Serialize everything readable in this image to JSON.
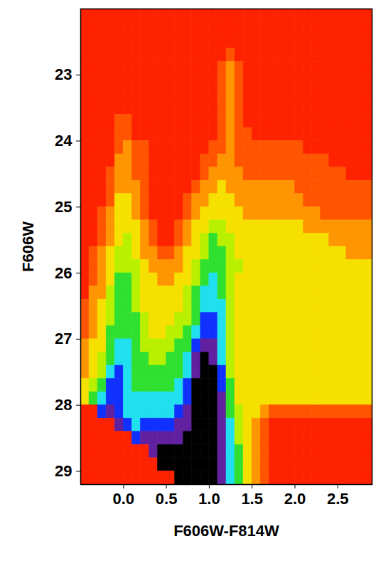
{
  "chart_data": {
    "type": "heatmap",
    "x_label": "F606W-F814W",
    "y_label": "F606W",
    "xlim": [
      -0.5,
      2.9
    ],
    "ylim": [
      29.2,
      22
    ],
    "xticks": [
      {
        "value": 0,
        "label": "0.0"
      },
      {
        "value": 0.5,
        "label": "0.5"
      },
      {
        "value": 1,
        "label": "1.0"
      },
      {
        "value": 1.5,
        "label": "1.5"
      },
      {
        "value": 2,
        "label": "2.0"
      },
      {
        "value": 2.5,
        "label": "2.5"
      }
    ],
    "yticks": [
      23,
      24,
      25,
      26,
      27,
      28,
      29
    ],
    "x_edges": [
      -0.5,
      -0.4,
      -0.3,
      -0.2,
      -0.1,
      0,
      0.1,
      0.2,
      0.3,
      0.4,
      0.5,
      0.6,
      0.7,
      0.8,
      0.9,
      1,
      1.1,
      1.2,
      1.3,
      1.4,
      1.5,
      1.6,
      1.7,
      1.8,
      1.9,
      2,
      2.1,
      2.2,
      2.3,
      2.4,
      2.5,
      2.6,
      2.7,
      2.8,
      2.9
    ],
    "y_edges": [
      22,
      22.2,
      22.4,
      22.6,
      22.8,
      23,
      23.2,
      23.4,
      23.6,
      23.8,
      24,
      24.2,
      24.4,
      24.6,
      24.8,
      25,
      25.2,
      25.4,
      25.6,
      25.8,
      26,
      26.2,
      26.4,
      26.6,
      26.8,
      27,
      27.2,
      27.4,
      27.6,
      27.8,
      28,
      28.2,
      28.4,
      28.6,
      28.8,
      29,
      29.2
    ],
    "zlim": [
      0,
      9
    ],
    "colors": [
      "#ff2200",
      "#ff5500",
      "#ff9500",
      "#f5e000",
      "#b8f000",
      "#30e030",
      "#20e0f0",
      "#1030ff",
      "#6020a0",
      "#000000"
    ],
    "z": [
      [
        0,
        0,
        0,
        0,
        0,
        0,
        0,
        0,
        0,
        0,
        0,
        0,
        0,
        0,
        0,
        0,
        0,
        0,
        0,
        0,
        0,
        0,
        0,
        0,
        0,
        0,
        0,
        0,
        0,
        0,
        0,
        0,
        0,
        0
      ],
      [
        0,
        0,
        0,
        0,
        0,
        0,
        0,
        0,
        0,
        0,
        0,
        0,
        0,
        0,
        0,
        0,
        0,
        0,
        0,
        0,
        0,
        0,
        0,
        0,
        0,
        0,
        0,
        0,
        0,
        0,
        0,
        0,
        0,
        0
      ],
      [
        0,
        0,
        0,
        0,
        0,
        0,
        0,
        0,
        0,
        0,
        0,
        0,
        0,
        0,
        0,
        0,
        0,
        0,
        0,
        0,
        0,
        0,
        0,
        0,
        0,
        0,
        0,
        0,
        0,
        0,
        0,
        0,
        0,
        0
      ],
      [
        0,
        0,
        0,
        0,
        0,
        0,
        0,
        0,
        0,
        0,
        0,
        0,
        0,
        0,
        0,
        0,
        0,
        1,
        0,
        0,
        0,
        0,
        0,
        0,
        0,
        0,
        0,
        0,
        0,
        0,
        0,
        0,
        0,
        0
      ],
      [
        0,
        0,
        0,
        0,
        0,
        0,
        0,
        0,
        0,
        0,
        0,
        0,
        0,
        0,
        0,
        0,
        1,
        2,
        1,
        0,
        0,
        0,
        0,
        0,
        0,
        0,
        0,
        0,
        0,
        0,
        0,
        0,
        0,
        0
      ],
      [
        0,
        0,
        0,
        0,
        0,
        0,
        0,
        0,
        0,
        0,
        0,
        0,
        0,
        0,
        0,
        0,
        1,
        2,
        1,
        0,
        0,
        0,
        0,
        0,
        0,
        0,
        0,
        0,
        0,
        0,
        0,
        0,
        0,
        0
      ],
      [
        0,
        0,
        0,
        0,
        0,
        0,
        0,
        0,
        0,
        0,
        0,
        0,
        0,
        0,
        0,
        0,
        1,
        2,
        1,
        0,
        0,
        0,
        0,
        0,
        0,
        0,
        0,
        0,
        0,
        0,
        0,
        0,
        0,
        0
      ],
      [
        0,
        0,
        0,
        0,
        0,
        0,
        0,
        0,
        0,
        0,
        0,
        0,
        0,
        0,
        0,
        0,
        1,
        2,
        1,
        0,
        0,
        0,
        0,
        0,
        0,
        0,
        0,
        0,
        0,
        0,
        0,
        0,
        0,
        0
      ],
      [
        0,
        0,
        0,
        0,
        1,
        1,
        0,
        0,
        0,
        0,
        0,
        0,
        0,
        0,
        0,
        0,
        1,
        2,
        1,
        0,
        0,
        0,
        0,
        0,
        0,
        0,
        0,
        0,
        0,
        0,
        0,
        0,
        0,
        0
      ],
      [
        0,
        0,
        0,
        0,
        1,
        1,
        0,
        0,
        0,
        0,
        0,
        0,
        0,
        0,
        0,
        0,
        1,
        2,
        1,
        1,
        0,
        0,
        0,
        0,
        0,
        0,
        0,
        0,
        0,
        0,
        0,
        0,
        0,
        0
      ],
      [
        0,
        0,
        0,
        0,
        1,
        2,
        1,
        1,
        0,
        0,
        0,
        0,
        0,
        0,
        0,
        1,
        1,
        2,
        1,
        1,
        1,
        1,
        1,
        1,
        1,
        1,
        0,
        0,
        0,
        0,
        0,
        0,
        0,
        0
      ],
      [
        0,
        0,
        0,
        0,
        2,
        2,
        1,
        1,
        0,
        0,
        0,
        0,
        0,
        0,
        1,
        1,
        2,
        2,
        1,
        1,
        1,
        1,
        1,
        1,
        1,
        1,
        1,
        1,
        1,
        0,
        0,
        0,
        0,
        0
      ],
      [
        0,
        0,
        0,
        1,
        2,
        2,
        1,
        1,
        0,
        0,
        0,
        0,
        0,
        0,
        1,
        2,
        2,
        2,
        2,
        1,
        1,
        1,
        1,
        1,
        1,
        1,
        1,
        1,
        1,
        1,
        1,
        0,
        0,
        0
      ],
      [
        0,
        0,
        0,
        1,
        2,
        2,
        2,
        1,
        0,
        0,
        0,
        0,
        0,
        1,
        2,
        2,
        3,
        2,
        2,
        2,
        2,
        2,
        2,
        2,
        2,
        1,
        1,
        1,
        1,
        1,
        1,
        1,
        1,
        1
      ],
      [
        0,
        0,
        0,
        1,
        3,
        3,
        2,
        1,
        0,
        0,
        0,
        0,
        1,
        2,
        2,
        3,
        3,
        3,
        2,
        2,
        2,
        2,
        2,
        2,
        2,
        2,
        1,
        1,
        1,
        1,
        1,
        1,
        1,
        1
      ],
      [
        0,
        0,
        1,
        2,
        3,
        3,
        2,
        1,
        0,
        0,
        0,
        0,
        1,
        2,
        3,
        3,
        3,
        3,
        3,
        2,
        2,
        2,
        2,
        2,
        2,
        2,
        2,
        2,
        1,
        1,
        1,
        1,
        1,
        1
      ],
      [
        0,
        0,
        1,
        2,
        3,
        3,
        3,
        2,
        1,
        0,
        0,
        1,
        2,
        3,
        3,
        4,
        4,
        3,
        3,
        3,
        3,
        3,
        3,
        3,
        3,
        3,
        2,
        2,
        2,
        2,
        2,
        2,
        2,
        2
      ],
      [
        0,
        0,
        1,
        2,
        3,
        4,
        3,
        2,
        1,
        0,
        0,
        1,
        2,
        3,
        4,
        5,
        4,
        4,
        3,
        3,
        3,
        3,
        3,
        3,
        3,
        3,
        3,
        3,
        3,
        2,
        2,
        2,
        2,
        2
      ],
      [
        0,
        1,
        2,
        3,
        4,
        4,
        3,
        2,
        2,
        1,
        1,
        2,
        3,
        3,
        4,
        5,
        5,
        4,
        3,
        3,
        3,
        3,
        3,
        3,
        3,
        3,
        3,
        3,
        3,
        3,
        3,
        2,
        2,
        2
      ],
      [
        0,
        1,
        2,
        3,
        4,
        4,
        4,
        3,
        2,
        2,
        2,
        2,
        3,
        4,
        5,
        5,
        5,
        4,
        4,
        3,
        3,
        3,
        3,
        3,
        3,
        3,
        3,
        3,
        3,
        3,
        3,
        3,
        3,
        3
      ],
      [
        0,
        1,
        2,
        3,
        5,
        5,
        4,
        3,
        3,
        2,
        2,
        3,
        3,
        4,
        5,
        6,
        5,
        4,
        3,
        3,
        3,
        3,
        3,
        3,
        3,
        3,
        3,
        3,
        3,
        3,
        3,
        3,
        3,
        3
      ],
      [
        0,
        2,
        2,
        4,
        5,
        5,
        4,
        3,
        3,
        3,
        3,
        3,
        4,
        5,
        6,
        6,
        5,
        4,
        3,
        3,
        3,
        3,
        3,
        3,
        3,
        3,
        3,
        3,
        3,
        3,
        3,
        3,
        3,
        3
      ],
      [
        1,
        2,
        3,
        4,
        5,
        5,
        4,
        3,
        3,
        3,
        3,
        3,
        4,
        5,
        6,
        6,
        6,
        4,
        3,
        3,
        3,
        3,
        3,
        3,
        3,
        3,
        3,
        3,
        3,
        3,
        3,
        3,
        3,
        3
      ],
      [
        1,
        2,
        3,
        4,
        5,
        5,
        5,
        4,
        3,
        3,
        3,
        4,
        4,
        5,
        7,
        7,
        6,
        4,
        3,
        3,
        3,
        3,
        3,
        3,
        3,
        3,
        3,
        3,
        3,
        3,
        3,
        3,
        3,
        3
      ],
      [
        1,
        2,
        3,
        5,
        5,
        5,
        5,
        4,
        3,
        3,
        4,
        4,
        5,
        6,
        7,
        7,
        6,
        4,
        3,
        3,
        3,
        3,
        3,
        3,
        3,
        3,
        3,
        3,
        3,
        3,
        3,
        3,
        3,
        3
      ],
      [
        2,
        3,
        3,
        5,
        6,
        6,
        5,
        4,
        4,
        4,
        4,
        5,
        5,
        7,
        8,
        8,
        6,
        4,
        3,
        3,
        3,
        3,
        3,
        3,
        3,
        3,
        3,
        3,
        3,
        3,
        3,
        3,
        3,
        3
      ],
      [
        2,
        3,
        4,
        5,
        6,
        6,
        5,
        5,
        4,
        4,
        5,
        5,
        6,
        8,
        9,
        8,
        6,
        4,
        3,
        3,
        3,
        3,
        3,
        3,
        3,
        3,
        3,
        3,
        3,
        3,
        3,
        3,
        3,
        3
      ],
      [
        2,
        3,
        4,
        6,
        7,
        6,
        5,
        5,
        5,
        5,
        5,
        5,
        6,
        8,
        9,
        9,
        7,
        4,
        3,
        3,
        3,
        3,
        3,
        3,
        3,
        3,
        3,
        3,
        3,
        3,
        3,
        3,
        3,
        3
      ],
      [
        3,
        4,
        5,
        7,
        7,
        6,
        5,
        5,
        5,
        5,
        5,
        6,
        7,
        9,
        9,
        9,
        7,
        5,
        3,
        3,
        3,
        3,
        3,
        3,
        3,
        3,
        3,
        3,
        3,
        3,
        3,
        3,
        3,
        3
      ],
      [
        3,
        5,
        6,
        7,
        7,
        6,
        6,
        6,
        6,
        6,
        6,
        6,
        7,
        9,
        9,
        9,
        8,
        5,
        3,
        3,
        3,
        3,
        3,
        3,
        3,
        3,
        3,
        3,
        3,
        3,
        3,
        3,
        3,
        3
      ],
      [
        0,
        0,
        7,
        8,
        7,
        6,
        6,
        6,
        6,
        6,
        6,
        7,
        8,
        9,
        9,
        9,
        8,
        5,
        4,
        3,
        3,
        2,
        1,
        1,
        1,
        1,
        1,
        1,
        1,
        1,
        1,
        1,
        1,
        1
      ],
      [
        0,
        0,
        0,
        0,
        8,
        7,
        6,
        7,
        7,
        7,
        7,
        8,
        8,
        9,
        9,
        9,
        8,
        6,
        4,
        3,
        2,
        1,
        0,
        0,
        0,
        0,
        0,
        0,
        0,
        0,
        0,
        0,
        0,
        0
      ],
      [
        0,
        0,
        0,
        0,
        0,
        0,
        7,
        8,
        8,
        8,
        8,
        8,
        9,
        9,
        9,
        9,
        8,
        6,
        4,
        3,
        2,
        1,
        0,
        0,
        0,
        0,
        0,
        0,
        0,
        0,
        0,
        0,
        0,
        0
      ],
      [
        0,
        0,
        0,
        0,
        0,
        0,
        0,
        0,
        8,
        9,
        9,
        9,
        9,
        9,
        9,
        9,
        8,
        6,
        5,
        3,
        2,
        1,
        0,
        0,
        0,
        0,
        0,
        0,
        0,
        0,
        0,
        0,
        0,
        0
      ],
      [
        0,
        0,
        0,
        0,
        0,
        0,
        0,
        0,
        0,
        9,
        9,
        9,
        9,
        9,
        9,
        9,
        8,
        6,
        5,
        3,
        2,
        1,
        0,
        0,
        0,
        0,
        0,
        0,
        0,
        0,
        0,
        0,
        0,
        0
      ],
      [
        0,
        0,
        0,
        0,
        0,
        0,
        0,
        0,
        0,
        0,
        0,
        9,
        9,
        9,
        9,
        9,
        8,
        6,
        5,
        3,
        2,
        1,
        0,
        0,
        0,
        0,
        0,
        0,
        0,
        0,
        0,
        0,
        0,
        0
      ]
    ]
  }
}
